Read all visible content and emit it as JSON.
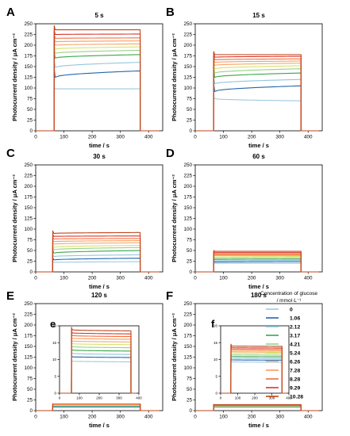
{
  "figure": {
    "legend": {
      "title_line1": "Concentration of glucose",
      "title_line2": "/ mmol·L⁻¹",
      "colors": [
        "#9ecae1",
        "#2166ac",
        "#92c5de",
        "#3aa64a",
        "#9bd08a",
        "#d7e36a",
        "#f4a86a",
        "#f89c5a",
        "#f46d43",
        "#d9352a",
        "#c0451a"
      ]
    },
    "xlabel": "time / s",
    "ylabel": "Photocurrent density / μA cm⁻²"
  },
  "chart_data": [
    {
      "panel": "A",
      "title": "5 s",
      "type": "line",
      "xlabel": "time / s",
      "ylabel": "Photocurrent density / μA cm⁻²",
      "xlim": [
        0,
        450
      ],
      "ylim": [
        0,
        250
      ],
      "xticks": [
        0,
        100,
        200,
        300,
        400
      ],
      "yticks": [
        0,
        25,
        50,
        75,
        100,
        125,
        150,
        175,
        200,
        225,
        250
      ],
      "on_off": [
        65,
        370
      ],
      "series": [
        {
          "name": "0",
          "start": 98,
          "end": 98
        },
        {
          "name": "1.06",
          "start": 125,
          "end": 140
        },
        {
          "name": "2.12",
          "start": 148,
          "end": 160
        },
        {
          "name": "3.17",
          "start": 170,
          "end": 178
        },
        {
          "name": "4.21",
          "start": 181,
          "end": 188
        },
        {
          "name": "5.24",
          "start": 191,
          "end": 196
        },
        {
          "name": "6.26",
          "start": 200,
          "end": 203
        },
        {
          "name": "7.28",
          "start": 208,
          "end": 210
        },
        {
          "name": "8.28",
          "start": 216,
          "end": 217
        },
        {
          "name": "9.29",
          "start": 225,
          "end": 226
        },
        {
          "name": "10.28",
          "start": 236,
          "end": 236
        }
      ]
    },
    {
      "panel": "B",
      "title": "15 s",
      "type": "line",
      "xlabel": "time / s",
      "ylabel": "Photocurrent density / μA cm⁻²",
      "xlim": [
        0,
        450
      ],
      "ylim": [
        0,
        250
      ],
      "xticks": [
        0,
        100,
        200,
        300,
        400
      ],
      "yticks": [
        0,
        25,
        50,
        75,
        100,
        125,
        150,
        175,
        200,
        225,
        250
      ],
      "on_off": [
        65,
        375
      ],
      "series": [
        {
          "name": "0",
          "start": 75,
          "end": 70
        },
        {
          "name": "1.06",
          "start": 92,
          "end": 105
        },
        {
          "name": "2.12",
          "start": 110,
          "end": 120
        },
        {
          "name": "3.17",
          "start": 125,
          "end": 135
        },
        {
          "name": "4.21",
          "start": 135,
          "end": 145
        },
        {
          "name": "5.24",
          "start": 145,
          "end": 152
        },
        {
          "name": "6.26",
          "start": 153,
          "end": 158
        },
        {
          "name": "7.28",
          "start": 160,
          "end": 163
        },
        {
          "name": "8.28",
          "start": 166,
          "end": 168
        },
        {
          "name": "9.29",
          "start": 172,
          "end": 174
        },
        {
          "name": "10.28",
          "start": 178,
          "end": 178
        }
      ]
    },
    {
      "panel": "C",
      "title": "30 s",
      "type": "line",
      "xlabel": "time / s",
      "ylabel": "Photocurrent density / μA cm⁻²",
      "xlim": [
        0,
        450
      ],
      "ylim": [
        0,
        250
      ],
      "xticks": [
        0,
        100,
        200,
        300,
        400
      ],
      "yticks": [
        0,
        25,
        50,
        75,
        100,
        125,
        150,
        175,
        200,
        225,
        250
      ],
      "on_off": [
        60,
        370
      ],
      "series": [
        {
          "name": "0",
          "start": 22,
          "end": 24
        },
        {
          "name": "1.06",
          "start": 28,
          "end": 32
        },
        {
          "name": "2.12",
          "start": 36,
          "end": 40
        },
        {
          "name": "3.17",
          "start": 44,
          "end": 50
        },
        {
          "name": "4.21",
          "start": 52,
          "end": 57
        },
        {
          "name": "5.24",
          "start": 58,
          "end": 62
        },
        {
          "name": "6.26",
          "start": 65,
          "end": 68
        },
        {
          "name": "7.28",
          "start": 71,
          "end": 73
        },
        {
          "name": "8.28",
          "start": 77,
          "end": 78
        },
        {
          "name": "9.29",
          "start": 83,
          "end": 84
        },
        {
          "name": "10.28",
          "start": 90,
          "end": 92
        }
      ]
    },
    {
      "panel": "D",
      "title": "60 s",
      "type": "line",
      "xlabel": "time / s",
      "ylabel": "Photocurrent density / μA cm⁻²",
      "xlim": [
        0,
        450
      ],
      "ylim": [
        0,
        250
      ],
      "xticks": [
        0,
        100,
        200,
        300,
        400
      ],
      "yticks": [
        0,
        25,
        50,
        75,
        100,
        125,
        150,
        175,
        200,
        225,
        250
      ],
      "on_off": [
        65,
        375
      ],
      "series": [
        {
          "name": "0",
          "start": 20,
          "end": 20
        },
        {
          "name": "1.06",
          "start": 23,
          "end": 24
        },
        {
          "name": "2.12",
          "start": 26,
          "end": 27
        },
        {
          "name": "3.17",
          "start": 29,
          "end": 30
        },
        {
          "name": "4.21",
          "start": 32,
          "end": 33
        },
        {
          "name": "5.24",
          "start": 35,
          "end": 36
        },
        {
          "name": "6.26",
          "start": 38,
          "end": 38
        },
        {
          "name": "7.28",
          "start": 40,
          "end": 40
        },
        {
          "name": "8.28",
          "start": 42,
          "end": 42
        },
        {
          "name": "9.29",
          "start": 45,
          "end": 45
        },
        {
          "name": "10.28",
          "start": 48,
          "end": 48
        }
      ]
    },
    {
      "panel": "E",
      "title": "120 s",
      "type": "line",
      "xlabel": "time / s",
      "ylabel": "Photocurrent density / μA cm⁻²",
      "xlim": [
        0,
        450
      ],
      "ylim": [
        0,
        250
      ],
      "xticks": [
        0,
        100,
        200,
        300,
        400
      ],
      "yticks": [
        0,
        25,
        50,
        75,
        100,
        125,
        150,
        175,
        200,
        225,
        250
      ],
      "on_off": [
        60,
        370
      ],
      "series": [
        {
          "name": "0",
          "start": 8,
          "end": 8
        },
        {
          "name": "1.06",
          "start": 9,
          "end": 9
        },
        {
          "name": "2.12",
          "start": 10,
          "end": 10
        },
        {
          "name": "3.17",
          "start": 11,
          "end": 11
        },
        {
          "name": "4.21",
          "start": 12,
          "end": 12
        },
        {
          "name": "5.24",
          "start": 13,
          "end": 13
        },
        {
          "name": "6.26",
          "start": 14,
          "end": 14
        },
        {
          "name": "7.28",
          "start": 15,
          "end": 15
        },
        {
          "name": "8.28",
          "start": 16,
          "end": 16
        },
        {
          "name": "9.29",
          "start": 17,
          "end": 17
        },
        {
          "name": "10.28",
          "start": 19,
          "end": 19
        }
      ],
      "inset": {
        "label": "e",
        "xlim": [
          0,
          400
        ],
        "ylim": [
          0,
          20
        ],
        "xticks": [
          0,
          100,
          200,
          300,
          400
        ],
        "yticks": [
          0,
          5,
          10,
          15,
          20
        ],
        "on_off": [
          60,
          360
        ],
        "series": [
          {
            "name": "0",
            "start": 9.5,
            "end": 9.3
          },
          {
            "name": "1.06",
            "start": 10.8,
            "end": 10.6
          },
          {
            "name": "2.12",
            "start": 11.8,
            "end": 11.5
          },
          {
            "name": "3.17",
            "start": 12.8,
            "end": 12.5
          },
          {
            "name": "4.21",
            "start": 13.8,
            "end": 13.5
          },
          {
            "name": "5.24",
            "start": 14.7,
            "end": 14.4
          },
          {
            "name": "6.26",
            "start": 15.5,
            "end": 15.2
          },
          {
            "name": "7.28",
            "start": 16.3,
            "end": 16.0
          },
          {
            "name": "8.28",
            "start": 17.1,
            "end": 16.8
          },
          {
            "name": "9.29",
            "start": 17.9,
            "end": 17.6
          },
          {
            "name": "10.28",
            "start": 18.8,
            "end": 18.5
          }
        ]
      }
    },
    {
      "panel": "F",
      "title": "180 s",
      "type": "line",
      "xlabel": "time / s",
      "ylabel": "Photocurrent density / μA cm⁻²",
      "xlim": [
        0,
        450
      ],
      "ylim": [
        0,
        250
      ],
      "xticks": [
        0,
        100,
        200,
        300,
        400
      ],
      "yticks": [
        0,
        25,
        50,
        75,
        100,
        125,
        150,
        175,
        200,
        225,
        250
      ],
      "on_off": [
        65,
        375
      ],
      "series": [
        {
          "name": "0",
          "start": 8,
          "end": 8
        },
        {
          "name": "1.06",
          "start": 9,
          "end": 9
        },
        {
          "name": "2.12",
          "start": 9.5,
          "end": 9.5
        },
        {
          "name": "3.17",
          "start": 10,
          "end": 10
        },
        {
          "name": "4.21",
          "start": 10.5,
          "end": 10.5
        },
        {
          "name": "5.24",
          "start": 11,
          "end": 11
        },
        {
          "name": "6.26",
          "start": 11.5,
          "end": 11.5
        },
        {
          "name": "7.28",
          "start": 12,
          "end": 12
        },
        {
          "name": "8.28",
          "start": 12.5,
          "end": 12.5
        },
        {
          "name": "9.29",
          "start": 13,
          "end": 13
        },
        {
          "name": "10.28",
          "start": 14,
          "end": 14
        }
      ],
      "inset": {
        "label": "f",
        "xlim": [
          0,
          400
        ],
        "ylim": [
          0,
          20
        ],
        "xticks": [
          0,
          100,
          200,
          300,
          400
        ],
        "yticks": [
          0,
          5,
          10,
          15,
          20
        ],
        "on_off": [
          60,
          360
        ],
        "series": [
          {
            "name": "0",
            "start": 9.3,
            "end": 9.2
          },
          {
            "name": "1.06",
            "start": 9.9,
            "end": 9.8
          },
          {
            "name": "2.12",
            "start": 10.4,
            "end": 10.3
          },
          {
            "name": "3.17",
            "start": 10.9,
            "end": 10.8
          },
          {
            "name": "4.21",
            "start": 11.4,
            "end": 11.3
          },
          {
            "name": "5.24",
            "start": 11.9,
            "end": 11.8
          },
          {
            "name": "6.26",
            "start": 12.3,
            "end": 12.2
          },
          {
            "name": "7.28",
            "start": 12.7,
            "end": 12.6
          },
          {
            "name": "8.28",
            "start": 13.1,
            "end": 13.0
          },
          {
            "name": "9.29",
            "start": 13.5,
            "end": 13.4
          },
          {
            "name": "10.28",
            "start": 14.0,
            "end": 13.9
          }
        ]
      }
    }
  ]
}
